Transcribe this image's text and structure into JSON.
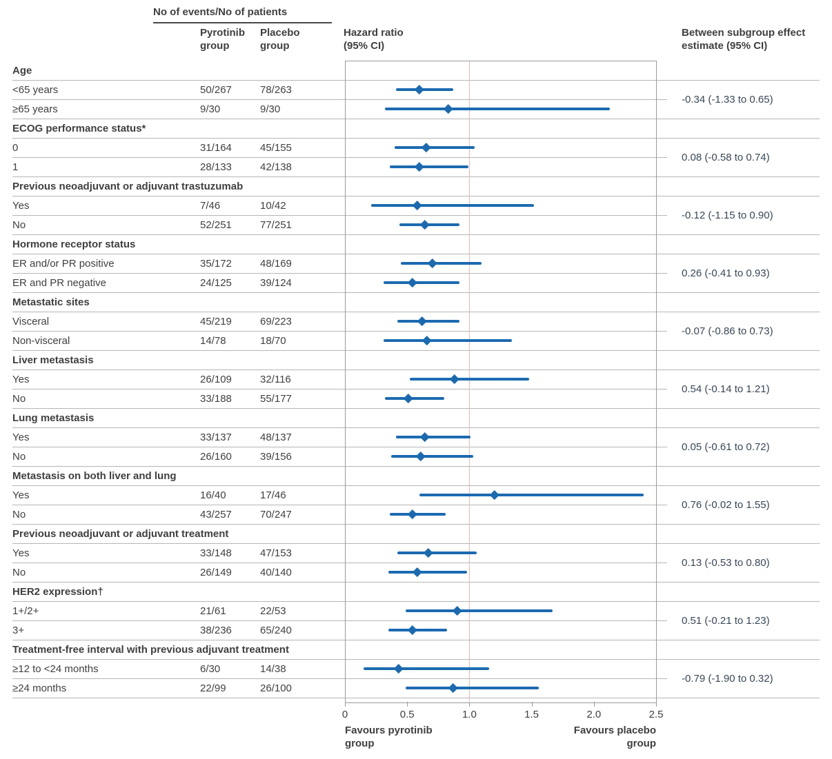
{
  "colors": {
    "marker": "#1b6ab0",
    "reference_line": "#f2b4b0",
    "grid": "#b5b5b5",
    "box_border": "#9a9a9a",
    "text": "#3f3f3f",
    "estimate_text": "#374757"
  },
  "chart_data": {
    "type": "forest",
    "columns": {
      "events_header": "No of events/No of patients",
      "group1": "Pyrotinib group",
      "group2": "Placebo group",
      "effect_header": "Hazard ratio (95% CI)",
      "between_header": "Between subgroup effect estimate (95% CI)"
    },
    "x_axis": {
      "min": 0,
      "max": 2.5,
      "ticks": [
        0,
        0.5,
        1.0,
        1.5,
        2.0,
        2.5
      ],
      "tick_labels": [
        "0",
        "0.5",
        "1.0",
        "1.5",
        "2.0",
        "2.5"
      ],
      "reference_line": 1.0,
      "favours_left": "Favours pyrotinib group",
      "favours_right": "Favours placebo group"
    },
    "sections": [
      {
        "header": "Age",
        "between_estimate": "-0.34 (-1.33 to 0.65)",
        "rows": [
          {
            "label": "<65 years",
            "events_pyrotinib": "50/267",
            "events_placebo": "78/263",
            "hr": 0.6,
            "ci_lower": 0.41,
            "ci_upper": 0.87
          },
          {
            "label": "≥65 years",
            "events_pyrotinib": "9/30",
            "events_placebo": "9/30",
            "hr": 0.83,
            "ci_lower": 0.32,
            "ci_upper": 2.13
          }
        ]
      },
      {
        "header": "ECOG performance status*",
        "between_estimate": "0.08 (-0.58 to 0.74)",
        "rows": [
          {
            "label": "0",
            "events_pyrotinib": "31/164",
            "events_placebo": "45/155",
            "hr": 0.65,
            "ci_lower": 0.4,
            "ci_upper": 1.04
          },
          {
            "label": "1",
            "events_pyrotinib": "28/133",
            "events_placebo": "42/138",
            "hr": 0.6,
            "ci_lower": 0.36,
            "ci_upper": 0.99
          }
        ]
      },
      {
        "header": "Previous neoadjuvant or adjuvant trastuzumab",
        "between_estimate": "-0.12 (-1.15 to 0.90)",
        "rows": [
          {
            "label": "Yes",
            "events_pyrotinib": "7/46",
            "events_placebo": "10/42",
            "hr": 0.58,
            "ci_lower": 0.21,
            "ci_upper": 1.52
          },
          {
            "label": "No",
            "events_pyrotinib": "52/251",
            "events_placebo": "77/251",
            "hr": 0.64,
            "ci_lower": 0.44,
            "ci_upper": 0.92
          }
        ]
      },
      {
        "header": "Hormone receptor status",
        "between_estimate": "0.26 (-0.41 to 0.93)",
        "rows": [
          {
            "label": "ER and/or PR positive",
            "events_pyrotinib": "35/172",
            "events_placebo": "48/169",
            "hr": 0.7,
            "ci_lower": 0.45,
            "ci_upper": 1.1
          },
          {
            "label": "ER and PR negative",
            "events_pyrotinib": "24/125",
            "events_placebo": "39/124",
            "hr": 0.54,
            "ci_lower": 0.31,
            "ci_upper": 0.92
          }
        ]
      },
      {
        "header": "Metastatic sites",
        "between_estimate": "-0.07 (-0.86 to 0.73)",
        "rows": [
          {
            "label": "Visceral",
            "events_pyrotinib": "45/219",
            "events_placebo": "69/223",
            "hr": 0.62,
            "ci_lower": 0.42,
            "ci_upper": 0.92
          },
          {
            "label": "Non-visceral",
            "events_pyrotinib": "14/78",
            "events_placebo": "18/70",
            "hr": 0.66,
            "ci_lower": 0.31,
            "ci_upper": 1.34
          }
        ]
      },
      {
        "header": "Liver metastasis",
        "between_estimate": "0.54 (-0.14 to 1.21)",
        "rows": [
          {
            "label": "Yes",
            "events_pyrotinib": "26/109",
            "events_placebo": "32/116",
            "hr": 0.88,
            "ci_lower": 0.52,
            "ci_upper": 1.48
          },
          {
            "label": "No",
            "events_pyrotinib": "33/188",
            "events_placebo": "55/177",
            "hr": 0.51,
            "ci_lower": 0.32,
            "ci_upper": 0.8
          }
        ]
      },
      {
        "header": "Lung metastasis",
        "between_estimate": "0.05 (-0.61 to 0.72)",
        "rows": [
          {
            "label": "Yes",
            "events_pyrotinib": "33/137",
            "events_placebo": "48/137",
            "hr": 0.64,
            "ci_lower": 0.41,
            "ci_upper": 1.01
          },
          {
            "label": "No",
            "events_pyrotinib": "26/160",
            "events_placebo": "39/156",
            "hr": 0.61,
            "ci_lower": 0.37,
            "ci_upper": 1.03
          }
        ]
      },
      {
        "header": "Metastasis on both liver and lung",
        "between_estimate": "0.76 (-0.02 to 1.55)",
        "rows": [
          {
            "label": "Yes",
            "events_pyrotinib": "16/40",
            "events_placebo": "17/46",
            "hr": 1.2,
            "ci_lower": 0.6,
            "ci_upper": 2.4
          },
          {
            "label": "No",
            "events_pyrotinib": "43/257",
            "events_placebo": "70/247",
            "hr": 0.54,
            "ci_lower": 0.36,
            "ci_upper": 0.81
          }
        ]
      },
      {
        "header": "Previous neoadjuvant or adjuvant treatment",
        "between_estimate": "0.13 (-0.53 to 0.80)",
        "rows": [
          {
            "label": "Yes",
            "events_pyrotinib": "33/148",
            "events_placebo": "47/153",
            "hr": 0.67,
            "ci_lower": 0.42,
            "ci_upper": 1.06
          },
          {
            "label": "No",
            "events_pyrotinib": "26/149",
            "events_placebo": "40/140",
            "hr": 0.58,
            "ci_lower": 0.35,
            "ci_upper": 0.98
          }
        ]
      },
      {
        "header": "HER2 expression†",
        "between_estimate": "0.51 (-0.21 to 1.23)",
        "rows": [
          {
            "label": "1+/2+",
            "events_pyrotinib": "21/61",
            "events_placebo": "22/53",
            "hr": 0.9,
            "ci_lower": 0.49,
            "ci_upper": 1.67
          },
          {
            "label": "3+",
            "events_pyrotinib": "38/236",
            "events_placebo": "65/240",
            "hr": 0.54,
            "ci_lower": 0.35,
            "ci_upper": 0.82
          }
        ]
      },
      {
        "header": "Treatment-free interval with previous adjuvant treatment",
        "between_estimate": "-0.79 (-1.90 to 0.32)",
        "rows": [
          {
            "label": "≥12 to <24 months",
            "events_pyrotinib": "6/30",
            "events_placebo": "14/38",
            "hr": 0.43,
            "ci_lower": 0.15,
            "ci_upper": 1.16
          },
          {
            "label": "≥24 months",
            "events_pyrotinib": "22/99",
            "events_placebo": "26/100",
            "hr": 0.87,
            "ci_lower": 0.49,
            "ci_upper": 1.56
          }
        ]
      }
    ]
  }
}
